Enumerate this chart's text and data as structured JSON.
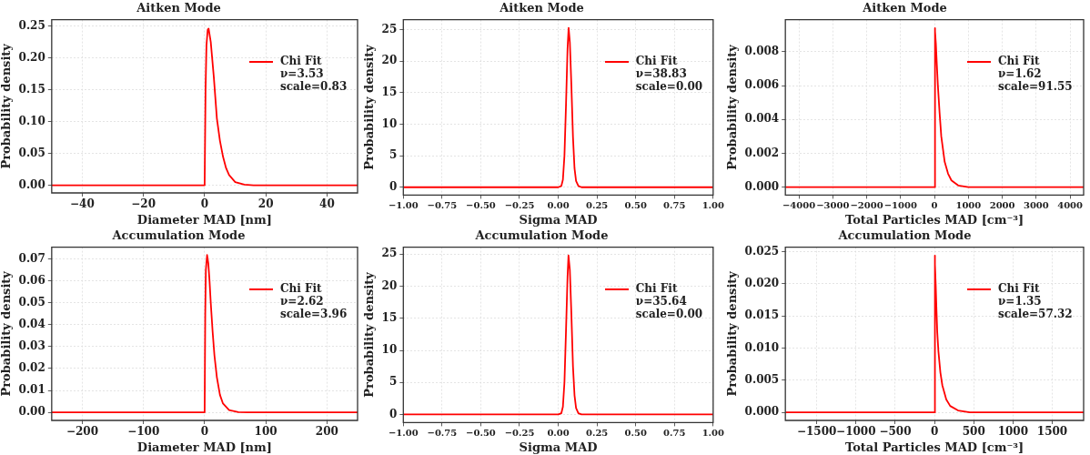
{
  "chart_data": [
    {
      "type": "line",
      "title": "Aitken Mode",
      "xlabel": "Diameter MAD [nm]",
      "ylabel": "Probability density",
      "xlim": [
        -50,
        50
      ],
      "ylim": [
        -0.012,
        0.26
      ],
      "xticks": [
        {
          "value": -40,
          "label": "−40"
        },
        {
          "value": -20,
          "label": "−20"
        },
        0,
        20,
        40
      ],
      "yticks": [
        {
          "value": 0,
          "label": "0.00"
        },
        {
          "value": 0.05,
          "label": "0.05"
        },
        {
          "value": 0.1,
          "label": "0.10"
        },
        {
          "value": 0.15,
          "label": "0.15"
        },
        {
          "value": 0.2,
          "label": "0.20"
        },
        {
          "value": 0.25,
          "label": "0.25"
        }
      ],
      "grid": true,
      "legend": "top right",
      "line_style": "solid",
      "marker": "none",
      "series": [
        {
          "name": "Chi Fit\nν=3.53\nscale=0.83",
          "color": "#ff0000",
          "x": [
            -50,
            0,
            0.3,
            0.6,
            1,
            1.3,
            2,
            3,
            4,
            5,
            6,
            7,
            8,
            10,
            13,
            16,
            50
          ],
          "values": [
            0,
            0,
            0.15,
            0.22,
            0.244,
            0.246,
            0.225,
            0.17,
            0.105,
            0.07,
            0.045,
            0.027,
            0.016,
            0.005,
            0.001,
            0,
            0
          ]
        }
      ]
    },
    {
      "type": "line",
      "title": "Aitken Mode",
      "xlabel": "Sigma MAD",
      "ylabel": "Probability density",
      "xlim": [
        -1,
        1
      ],
      "ylim": [
        -1.25,
        26.6
      ],
      "xticks": [
        {
          "value": -1,
          "label": "−1.00"
        },
        {
          "value": -0.75,
          "label": "−0.75"
        },
        {
          "value": -0.5,
          "label": "−0.50"
        },
        {
          "value": -0.25,
          "label": "−0.25"
        },
        {
          "value": 0,
          "label": "0.00"
        },
        0.25,
        {
          "value": 0.5,
          "label": "0.50"
        },
        0.75,
        {
          "value": 1,
          "label": "1.00"
        }
      ],
      "yticks": [
        0,
        5,
        10,
        15,
        20,
        25
      ],
      "grid": true,
      "legend": "top right",
      "line_style": "solid",
      "marker": "none",
      "series": [
        {
          "name": "Chi Fit\nν=38.83\nscale=0.00",
          "color": "#ff0000",
          "x": [
            -1,
            0,
            0.02,
            0.03,
            0.04,
            0.05,
            0.06,
            0.067,
            0.075,
            0.085,
            0.095,
            0.105,
            0.115,
            0.13,
            0.15,
            1
          ],
          "values": [
            0,
            0,
            0.2,
            1.2,
            5,
            13,
            22,
            25.3,
            23,
            16,
            8,
            3,
            1,
            0.2,
            0,
            0
          ]
        }
      ]
    },
    {
      "type": "line",
      "title": "Aitken Mode",
      "xlabel": "Total Particles MAD [cm⁻³]",
      "ylabel": "Probability density",
      "xlim": [
        -4400,
        4400
      ],
      "ylim": [
        -0.00047,
        0.0099
      ],
      "xticks": [
        {
          "value": -4000,
          "label": "−4000"
        },
        {
          "value": -3000,
          "label": "−3000"
        },
        {
          "value": -2000,
          "label": "−2000"
        },
        {
          "value": -1000,
          "label": "−1000"
        },
        0,
        1000,
        2000,
        3000,
        4000
      ],
      "yticks": [
        {
          "value": 0,
          "label": "0.000"
        },
        0.002,
        0.004,
        0.006,
        0.008
      ],
      "grid": true,
      "legend": "top right",
      "line_style": "solid",
      "marker": "none",
      "series": [
        {
          "name": "Chi Fit\nν=1.62\nscale=91.55",
          "color": "#ff0000",
          "x": [
            -4400,
            0,
            10,
            20,
            40,
            70,
            100,
            150,
            200,
            300,
            400,
            500,
            700,
            1000,
            4400
          ],
          "values": [
            0,
            0,
            0.0094,
            0.0092,
            0.0085,
            0.0072,
            0.006,
            0.0044,
            0.003,
            0.0015,
            0.0008,
            0.0004,
            0.0001,
            0,
            0
          ]
        }
      ]
    },
    {
      "type": "line",
      "title": "Accumulation Mode",
      "xlabel": "Diameter MAD [nm]",
      "ylabel": "Probability density",
      "xlim": [
        -250,
        250
      ],
      "ylim": [
        -0.0037,
        0.0754
      ],
      "xticks": [
        {
          "value": -200,
          "label": "−200"
        },
        {
          "value": -100,
          "label": "−100"
        },
        0,
        100,
        200
      ],
      "yticks": [
        {
          "value": 0,
          "label": "0.00"
        },
        0.01,
        0.02,
        0.03,
        0.04,
        0.05,
        0.06,
        0.07
      ],
      "grid": true,
      "legend": "top right",
      "line_style": "solid",
      "marker": "none",
      "series": [
        {
          "name": "Chi Fit\nν=2.62\nscale=3.96",
          "color": "#ff0000",
          "x": [
            -250,
            0,
            1,
            2,
            4,
            6,
            8,
            10,
            13,
            16,
            20,
            25,
            30,
            40,
            55,
            70,
            250
          ],
          "values": [
            0,
            0,
            0.045,
            0.065,
            0.0718,
            0.068,
            0.06,
            0.05,
            0.037,
            0.026,
            0.016,
            0.008,
            0.004,
            0.001,
            0.0001,
            0,
            0
          ]
        }
      ]
    },
    {
      "type": "line",
      "title": "Accumulation Mode",
      "xlabel": "Sigma MAD",
      "ylabel": "Probability density",
      "xlim": [
        -1,
        1
      ],
      "ylim": [
        -1.27,
        26.1
      ],
      "xticks": [
        {
          "value": -1,
          "label": "−1.00"
        },
        {
          "value": -0.75,
          "label": "−0.75"
        },
        {
          "value": -0.5,
          "label": "−0.50"
        },
        {
          "value": -0.25,
          "label": "−0.25"
        },
        {
          "value": 0,
          "label": "0.00"
        },
        0.25,
        {
          "value": 0.5,
          "label": "0.50"
        },
        0.75,
        {
          "value": 1,
          "label": "1.00"
        }
      ],
      "yticks": [
        0,
        5,
        10,
        15,
        20,
        25
      ],
      "grid": true,
      "legend": "top right",
      "line_style": "solid",
      "marker": "none",
      "series": [
        {
          "name": "Chi Fit\nν=35.64\nscale=0.00",
          "color": "#ff0000",
          "x": [
            -1,
            0,
            0.02,
            0.03,
            0.04,
            0.05,
            0.06,
            0.066,
            0.075,
            0.085,
            0.095,
            0.105,
            0.115,
            0.13,
            0.15,
            1
          ],
          "values": [
            0,
            0,
            0.2,
            1.2,
            5,
            13,
            21.5,
            24.8,
            22.5,
            15.5,
            7.5,
            3,
            1,
            0.2,
            0,
            0
          ]
        }
      ]
    },
    {
      "type": "line",
      "title": "Accumulation Mode",
      "xlabel": "Total Particles MAD [cm⁻³]",
      "ylabel": "Probability density",
      "xlim": [
        -1900,
        1900
      ],
      "ylim": [
        -0.00125,
        0.0257
      ],
      "xticks": [
        {
          "value": -1500,
          "label": "−1500"
        },
        {
          "value": -1000,
          "label": "−1000"
        },
        {
          "value": -500,
          "label": "−500"
        },
        0,
        500,
        1000,
        1500
      ],
      "yticks": [
        {
          "value": 0,
          "label": "0.000"
        },
        0.005,
        {
          "value": 0.01,
          "label": "0.010"
        },
        0.015,
        {
          "value": 0.02,
          "label": "0.020"
        },
        0.025
      ],
      "grid": true,
      "legend": "top right",
      "line_style": "solid",
      "marker": "none",
      "series": [
        {
          "name": "Chi Fit\nν=1.35\nscale=57.32",
          "color": "#ff0000",
          "x": [
            -1900,
            0,
            3,
            8,
            15,
            25,
            35,
            50,
            75,
            100,
            150,
            200,
            300,
            450,
            600,
            1900
          ],
          "values": [
            0,
            0,
            0.0244,
            0.023,
            0.02,
            0.016,
            0.0125,
            0.0095,
            0.0062,
            0.0042,
            0.002,
            0.001,
            0.0003,
            0,
            0,
            0
          ]
        }
      ]
    }
  ]
}
